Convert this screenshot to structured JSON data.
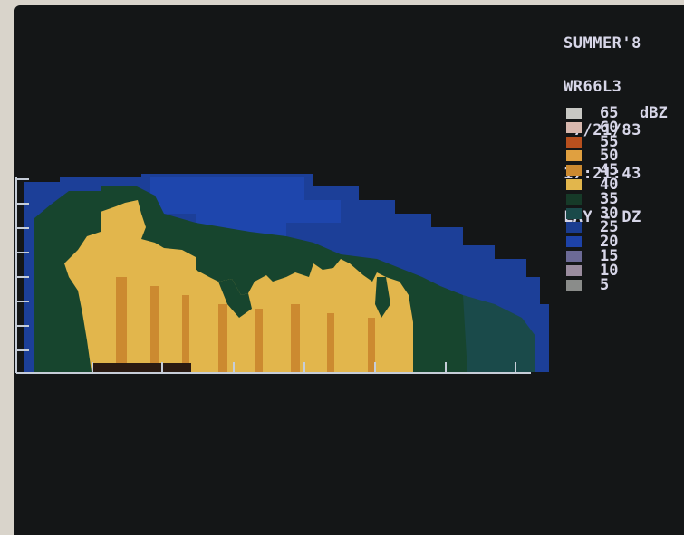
{
  "header": {
    "line1": "SUMMER'8",
    "line2": "WR66L3",
    "date": " 7/21/83",
    "time": "17:21:43",
    "mode": "LAY - DZ"
  },
  "legend": {
    "unit": "dBZ",
    "levels": [
      {
        "value": "65",
        "color": "#c8c8c4"
      },
      {
        "value": "60",
        "color": "#d8b8ae"
      },
      {
        "value": "55",
        "color": "#b8501e"
      },
      {
        "value": "50",
        "color": "#e0a040"
      },
      {
        "value": "45",
        "color": "#cc8a30"
      },
      {
        "value": "40",
        "color": "#e2b64c"
      },
      {
        "value": "35",
        "color": "#163a28"
      },
      {
        "value": "30",
        "color": "#1a4a4a"
      },
      {
        "value": "25",
        "color": "#1a3c90"
      },
      {
        "value": "20",
        "color": "#1d42a8"
      },
      {
        "value": "15",
        "color": "#6c6a96"
      },
      {
        "value": "10",
        "color": "#9a8c9e"
      },
      {
        "value": "5",
        "color": "#8a8c8a"
      }
    ]
  },
  "colors": {
    "background": "#141617",
    "echo_gold": "#e2b64c",
    "echo_orange": "#cc8a30",
    "echo_green": "#17452e",
    "echo_blue": "#1c3f98",
    "axis": "#c6cdd8"
  }
}
